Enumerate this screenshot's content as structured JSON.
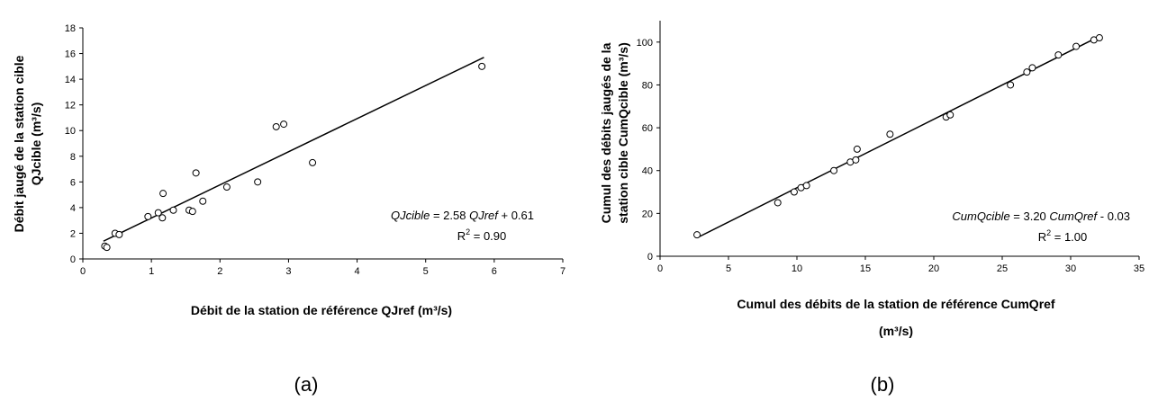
{
  "chart_data": [
    {
      "type": "scatter",
      "panel_label": "(a)",
      "xlabel": "Débit de la station de référence QJref (m³/s)",
      "ylabel_line1": "Débit jaugé de la station cible",
      "ylabel_line2": "QJcible (m³/s)",
      "xlim": [
        0,
        7
      ],
      "ylim": [
        0,
        18
      ],
      "xticks": [
        0,
        1,
        2,
        3,
        4,
        5,
        6,
        7
      ],
      "yticks": [
        0,
        2,
        4,
        6,
        8,
        10,
        12,
        14,
        16,
        18
      ],
      "grid": false,
      "points": [
        {
          "x": 0.32,
          "y": 1.0
        },
        {
          "x": 0.35,
          "y": 0.9
        },
        {
          "x": 0.47,
          "y": 2.0
        },
        {
          "x": 0.53,
          "y": 1.9
        },
        {
          "x": 0.95,
          "y": 3.3
        },
        {
          "x": 1.1,
          "y": 3.6
        },
        {
          "x": 1.16,
          "y": 3.2
        },
        {
          "x": 1.17,
          "y": 5.1
        },
        {
          "x": 1.32,
          "y": 3.8
        },
        {
          "x": 1.55,
          "y": 3.8
        },
        {
          "x": 1.6,
          "y": 3.7
        },
        {
          "x": 1.65,
          "y": 6.7
        },
        {
          "x": 1.75,
          "y": 4.5
        },
        {
          "x": 2.1,
          "y": 5.6
        },
        {
          "x": 2.55,
          "y": 6.0
        },
        {
          "x": 2.82,
          "y": 10.3
        },
        {
          "x": 2.93,
          "y": 10.5
        },
        {
          "x": 3.35,
          "y": 7.5
        },
        {
          "x": 5.82,
          "y": 15.0
        }
      ],
      "trendline": {
        "slope": 2.58,
        "intercept": 0.61,
        "x_from": 0.3,
        "x_to": 5.85
      },
      "equation": {
        "lhs": "QJcible",
        "middle": " = 2.58 ",
        "var": "QJref",
        "rhs": " + 0.61",
        "r2_label": "R",
        "r2_value": " = 0.90"
      }
    },
    {
      "type": "scatter",
      "panel_label": "(b)",
      "xlabel_line1": "Cumul des débits de la station de référence CumQref",
      "xlabel_line2": "(m³/s)",
      "ylabel_line1": "Cumul des débits jaugés de la",
      "ylabel_line2": "station cible CumQcible (m³/s)",
      "xlim": [
        0,
        35
      ],
      "ylim": [
        0,
        110
      ],
      "xticks": [
        0,
        5,
        10,
        15,
        20,
        25,
        30,
        35
      ],
      "yticks": [
        0,
        20,
        40,
        60,
        80,
        100
      ],
      "grid": false,
      "points": [
        {
          "x": 2.7,
          "y": 10
        },
        {
          "x": 8.6,
          "y": 25
        },
        {
          "x": 9.8,
          "y": 30
        },
        {
          "x": 10.3,
          "y": 32
        },
        {
          "x": 10.7,
          "y": 33
        },
        {
          "x": 12.7,
          "y": 40
        },
        {
          "x": 13.9,
          "y": 44
        },
        {
          "x": 14.3,
          "y": 45
        },
        {
          "x": 14.4,
          "y": 50
        },
        {
          "x": 16.8,
          "y": 57
        },
        {
          "x": 20.9,
          "y": 65
        },
        {
          "x": 21.2,
          "y": 66
        },
        {
          "x": 25.6,
          "y": 80
        },
        {
          "x": 26.8,
          "y": 86
        },
        {
          "x": 27.2,
          "y": 88
        },
        {
          "x": 29.1,
          "y": 94
        },
        {
          "x": 30.4,
          "y": 98
        },
        {
          "x": 31.7,
          "y": 101
        },
        {
          "x": 32.1,
          "y": 102
        }
      ],
      "trendline": {
        "slope": 3.2,
        "intercept": -0.03,
        "x_from": 2.7,
        "x_to": 32.2
      },
      "equation": {
        "lhs": "CumQcible",
        "middle": "  = 3.20 ",
        "var": "CumQref",
        "rhs": "  - 0.03",
        "r2_label": "R",
        "r2_value": " = 1.00"
      }
    }
  ]
}
